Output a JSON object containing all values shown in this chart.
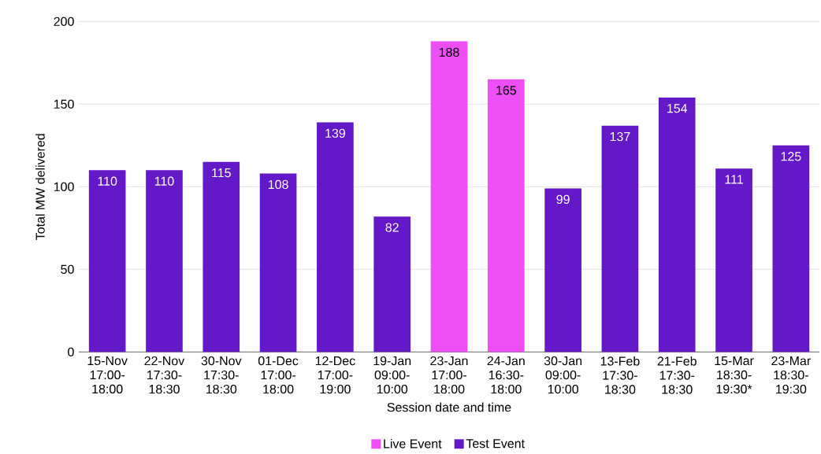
{
  "chart_data": {
    "type": "bar",
    "xlabel": "Session date and time",
    "ylabel": "Total MW delivered",
    "categories": [
      "15-Nov 17:00-18:00",
      "22-Nov 17:30-18:30",
      "30-Nov 17:30-18:30",
      "01-Dec 17:00-18:00",
      "12-Dec 17:00-19:00",
      "19-Jan 09:00-10:00",
      "23-Jan 17:00-18:00",
      "24-Jan 16:30-18:00",
      "30-Jan 09:00-10:00",
      "13-Feb 17:30-18:30",
      "21-Feb 17:30-18:30",
      "15-Mar 18:30-19:30*",
      "23-Mar 18:30-19:30"
    ],
    "series": [
      {
        "name": "Live Event",
        "color": "#ee4ff5",
        "values": [
          null,
          null,
          null,
          null,
          null,
          null,
          188,
          165,
          null,
          null,
          null,
          null,
          null
        ]
      },
      {
        "name": "Test Event",
        "color": "#6419c9",
        "values": [
          110,
          110,
          115,
          108,
          139,
          82,
          null,
          null,
          99,
          137,
          154,
          111,
          125
        ]
      }
    ],
    "ylim": [
      0,
      200
    ],
    "yticks": [
      0,
      50,
      100,
      150,
      200
    ],
    "grid": "y",
    "legend": "bottom",
    "data_labels": true
  }
}
